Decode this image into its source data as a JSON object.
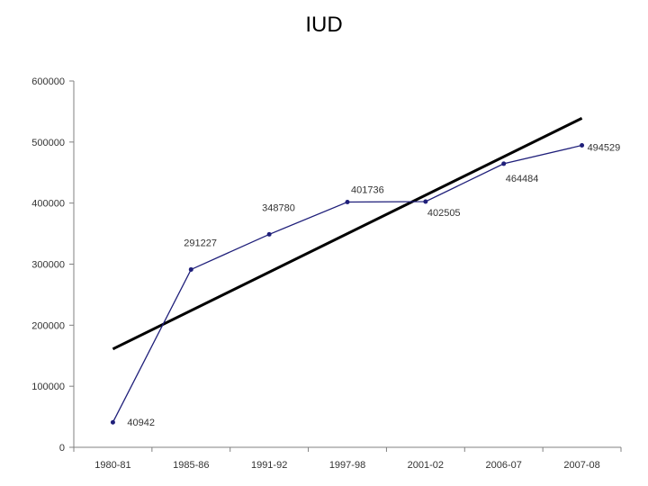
{
  "chart_data": {
    "type": "line",
    "title": "IUD",
    "xlabel": "",
    "ylabel": "",
    "categories": [
      "1980-81",
      "1985-86",
      "1991-92",
      "1997-98",
      "2001-02",
      "2006-07",
      "2007-08"
    ],
    "series": [
      {
        "name": "",
        "color": "#1f1f7a",
        "values": [
          40942,
          291227,
          348780,
          401736,
          402505,
          464484,
          494529
        ],
        "labels": [
          "40942",
          "291227",
          "348780",
          "401736",
          "402505",
          "464484",
          "494529"
        ]
      }
    ],
    "trendline": {
      "type": "linear",
      "color": "#000000",
      "start": 161000,
      "end": 539000
    },
    "ylim": [
      0,
      600000
    ],
    "yticks": [
      "0",
      "100000",
      "200000",
      "300000",
      "400000",
      "500000",
      "600000"
    ],
    "grid": false,
    "legend": "none"
  }
}
